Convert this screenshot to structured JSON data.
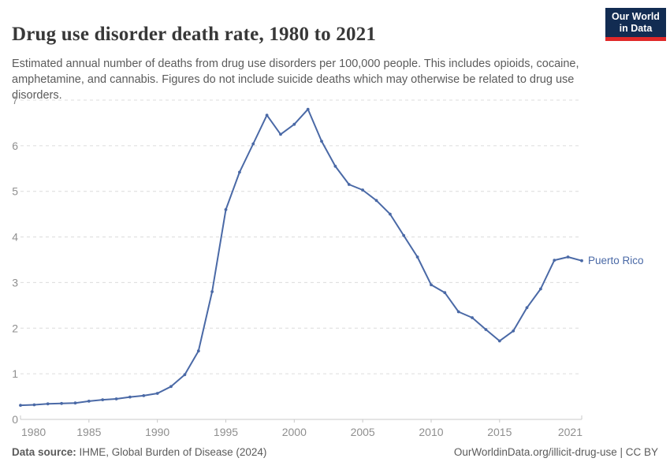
{
  "header": {
    "title": "Drug use disorder death rate, 1980 to 2021",
    "subtitle": "Estimated annual number of deaths from drug use disorders per 100,000 people. This includes opioids, cocaine, amphetamine, and cannabis. Figures do not include suicide deaths which may otherwise be related to drug use disorders.",
    "logo": {
      "line1": "Our World",
      "line2": "in Data",
      "bg_color": "#122c52",
      "accent_color": "#e02828"
    }
  },
  "chart_data": {
    "type": "line",
    "title": "Drug use disorder death rate, 1980 to 2021",
    "xlabel": "",
    "ylabel": "",
    "xlim": [
      1980,
      2021
    ],
    "ylim": [
      0,
      7
    ],
    "yticks": [
      0,
      1,
      2,
      3,
      4,
      5,
      6,
      7
    ],
    "xticks": [
      1980,
      1985,
      1990,
      1995,
      2000,
      2005,
      2010,
      2015,
      2021
    ],
    "grid": "horizontal-dashed",
    "legend_position": "end-of-line-label",
    "x": [
      1980,
      1981,
      1982,
      1983,
      1984,
      1985,
      1986,
      1987,
      1988,
      1989,
      1990,
      1991,
      1992,
      1993,
      1994,
      1995,
      1996,
      1997,
      1998,
      1999,
      2000,
      2001,
      2002,
      2003,
      2004,
      2005,
      2006,
      2007,
      2008,
      2009,
      2010,
      2011,
      2012,
      2013,
      2014,
      2015,
      2016,
      2017,
      2018,
      2019,
      2020,
      2021
    ],
    "series": [
      {
        "name": "Puerto Rico",
        "color": "#4a69a6",
        "values": [
          0.31,
          0.32,
          0.34,
          0.35,
          0.36,
          0.4,
          0.43,
          0.45,
          0.49,
          0.52,
          0.57,
          0.72,
          0.98,
          1.5,
          2.8,
          4.6,
          5.42,
          6.04,
          6.67,
          6.25,
          6.47,
          6.8,
          6.1,
          5.55,
          5.15,
          5.03,
          4.8,
          4.5,
          4.03,
          3.56,
          2.95,
          2.78,
          2.36,
          2.23,
          1.97,
          1.72,
          1.94,
          2.45,
          2.86,
          3.49,
          3.56,
          3.48
        ]
      }
    ],
    "axis_color": "#c8c8c8",
    "grid_color": "#dcdcdc",
    "tick_label_color": "#8f8f8f"
  },
  "footer": {
    "source_label": "Data source:",
    "source_value": " IHME, Global Burden of Disease (2024)",
    "right_text": "OurWorldinData.org/illicit-drug-use | CC BY"
  }
}
